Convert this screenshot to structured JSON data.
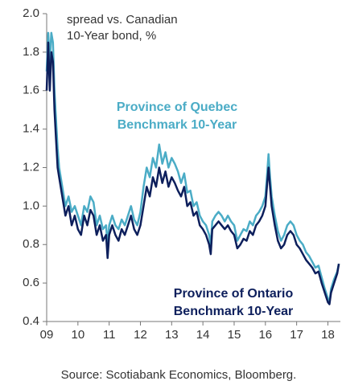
{
  "chart_data": {
    "type": "line",
    "annotations": [
      "spread vs. Canadian",
      "10-Year bond, %"
    ],
    "source": "Source: Scotiabank Economics, Bloomberg.",
    "series_labels": [
      [
        "Province of Quebec",
        "Benchmark 10-Year"
      ],
      [
        "Province of Ontario",
        "Benchmark 10-Year"
      ]
    ],
    "x": [
      2009.0,
      2009.05,
      2009.1,
      2009.15,
      2009.2,
      2009.25,
      2009.3,
      2009.35,
      2009.4,
      2009.5,
      2009.6,
      2009.7,
      2009.8,
      2009.9,
      2010.0,
      2010.1,
      2010.2,
      2010.3,
      2010.4,
      2010.5,
      2010.6,
      2010.7,
      2010.8,
      2010.9,
      2010.95,
      2011.0,
      2011.1,
      2011.2,
      2011.3,
      2011.4,
      2011.5,
      2011.6,
      2011.7,
      2011.8,
      2011.9,
      2012.0,
      2012.1,
      2012.2,
      2012.3,
      2012.4,
      2012.5,
      2012.6,
      2012.7,
      2012.8,
      2012.9,
      2013.0,
      2013.1,
      2013.2,
      2013.3,
      2013.4,
      2013.5,
      2013.6,
      2013.7,
      2013.8,
      2013.9,
      2014.0,
      2014.1,
      2014.2,
      2014.25,
      2014.3,
      2014.4,
      2014.5,
      2014.6,
      2014.7,
      2014.8,
      2014.9,
      2015.0,
      2015.1,
      2015.2,
      2015.3,
      2015.4,
      2015.5,
      2015.6,
      2015.7,
      2015.8,
      2015.9,
      2016.0,
      2016.05,
      2016.1,
      2016.15,
      2016.2,
      2016.3,
      2016.4,
      2016.5,
      2016.6,
      2016.7,
      2016.8,
      2016.9,
      2017.0,
      2017.1,
      2017.2,
      2017.3,
      2017.4,
      2017.5,
      2017.6,
      2017.7,
      2017.8,
      2017.9,
      2018.0,
      2018.05,
      2018.1,
      2018.2,
      2018.3,
      2018.35
    ],
    "series": [
      {
        "name": "Province of Quebec Benchmark 10-Year",
        "color": "#4bacc6",
        "values": [
          1.7,
          1.9,
          1.75,
          1.9,
          1.85,
          1.6,
          1.45,
          1.3,
          1.2,
          1.1,
          1.0,
          1.05,
          0.97,
          1.0,
          0.95,
          0.9,
          1.0,
          0.97,
          1.05,
          1.02,
          0.9,
          0.95,
          0.88,
          0.9,
          0.8,
          0.9,
          0.95,
          0.9,
          0.88,
          0.93,
          0.9,
          0.95,
          1.0,
          0.93,
          0.9,
          0.97,
          1.1,
          1.2,
          1.15,
          1.25,
          1.2,
          1.32,
          1.22,
          1.28,
          1.2,
          1.25,
          1.22,
          1.18,
          1.12,
          1.17,
          1.07,
          1.08,
          1.0,
          1.02,
          0.95,
          0.92,
          0.9,
          0.85,
          0.8,
          0.92,
          0.95,
          0.97,
          0.95,
          0.92,
          0.95,
          0.92,
          0.9,
          0.82,
          0.85,
          0.88,
          0.87,
          0.92,
          0.9,
          0.95,
          0.97,
          1.0,
          1.05,
          1.15,
          1.27,
          1.15,
          1.05,
          0.95,
          0.87,
          0.82,
          0.85,
          0.9,
          0.92,
          0.9,
          0.85,
          0.82,
          0.8,
          0.76,
          0.74,
          0.71,
          0.68,
          0.69,
          0.63,
          0.57,
          0.52,
          0.5,
          0.57,
          0.62,
          0.66,
          0.7
        ]
      },
      {
        "name": "Province of Ontario Benchmark 10-Year",
        "color": "#0d1f5c",
        "values": [
          1.6,
          1.85,
          1.6,
          1.8,
          1.75,
          1.5,
          1.35,
          1.2,
          1.15,
          1.05,
          0.95,
          1.0,
          0.9,
          0.95,
          0.88,
          0.85,
          0.95,
          0.9,
          0.98,
          0.95,
          0.85,
          0.9,
          0.82,
          0.85,
          0.73,
          0.85,
          0.9,
          0.85,
          0.82,
          0.88,
          0.85,
          0.9,
          0.95,
          0.88,
          0.85,
          0.9,
          1.0,
          1.1,
          1.05,
          1.15,
          1.1,
          1.2,
          1.12,
          1.18,
          1.1,
          1.15,
          1.12,
          1.08,
          1.05,
          1.1,
          1.0,
          1.02,
          0.95,
          0.97,
          0.9,
          0.88,
          0.85,
          0.8,
          0.75,
          0.88,
          0.9,
          0.92,
          0.9,
          0.88,
          0.9,
          0.87,
          0.85,
          0.78,
          0.8,
          0.83,
          0.82,
          0.87,
          0.85,
          0.9,
          0.92,
          0.95,
          1.0,
          1.1,
          1.2,
          1.1,
          1.0,
          0.9,
          0.82,
          0.78,
          0.8,
          0.85,
          0.87,
          0.85,
          0.8,
          0.78,
          0.75,
          0.72,
          0.7,
          0.68,
          0.65,
          0.66,
          0.6,
          0.55,
          0.5,
          0.49,
          0.55,
          0.6,
          0.65,
          0.7
        ]
      }
    ],
    "xlim": [
      2009,
      2018.4
    ],
    "xticks": [
      {
        "value": 2009,
        "label": "09"
      },
      {
        "value": 2010,
        "label": "10"
      },
      {
        "value": 2011,
        "label": "11"
      },
      {
        "value": 2012,
        "label": "12"
      },
      {
        "value": 2013,
        "label": "13"
      },
      {
        "value": 2014,
        "label": "14"
      },
      {
        "value": 2015,
        "label": "15"
      },
      {
        "value": 2016,
        "label": "16"
      },
      {
        "value": 2017,
        "label": "17"
      },
      {
        "value": 2018,
        "label": "18"
      }
    ],
    "ylim": [
      0.4,
      2.0
    ],
    "yticks": [
      {
        "value": 0.4,
        "label": "0.4"
      },
      {
        "value": 0.6,
        "label": "0.6"
      },
      {
        "value": 0.8,
        "label": "0.8"
      },
      {
        "value": 1.0,
        "label": "1.0"
      },
      {
        "value": 1.2,
        "label": "1.2"
      },
      {
        "value": 1.4,
        "label": "1.4"
      },
      {
        "value": 1.6,
        "label": "1.6"
      },
      {
        "value": 1.8,
        "label": "1.8"
      },
      {
        "value": 2.0,
        "label": "2.0"
      }
    ]
  }
}
